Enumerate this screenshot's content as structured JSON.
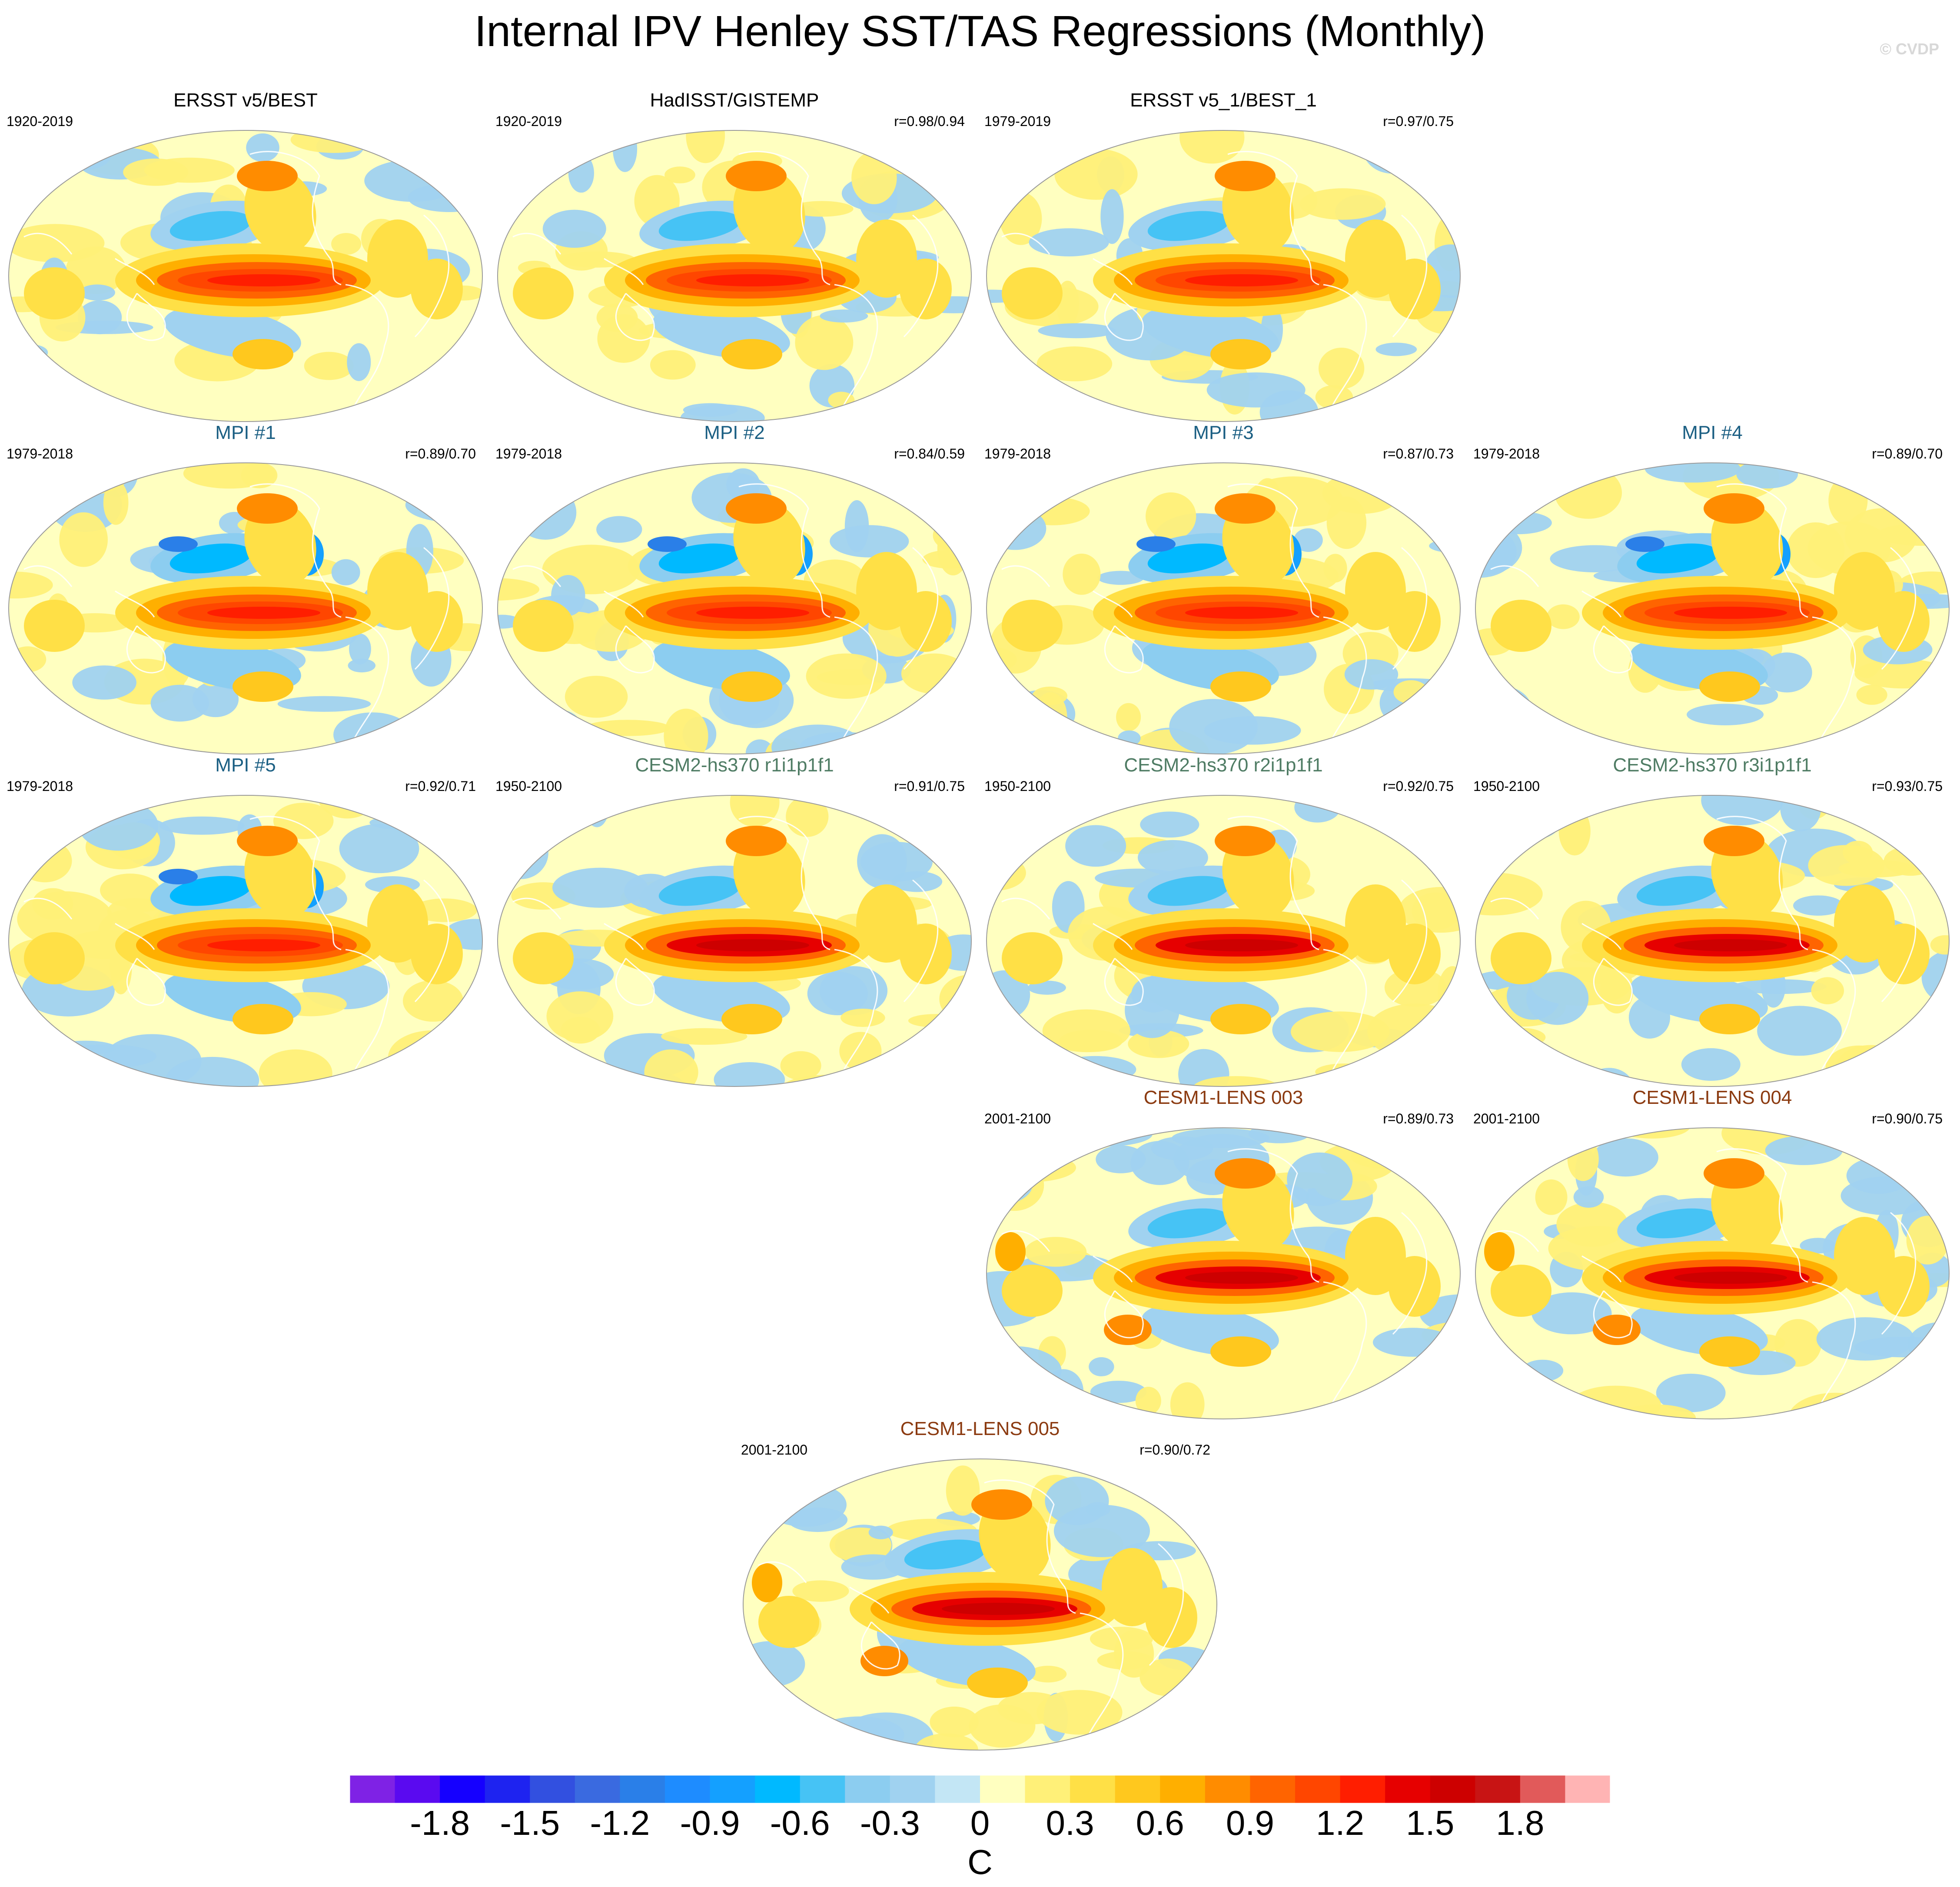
{
  "title": "Internal IPV Henley SST/TAS Regressions (Monthly)",
  "watermark": "© CVDP",
  "chart_data": {
    "type": "map-panel-grid",
    "variable": "SST/TAS regression on internal IPV Henley index",
    "units": "C",
    "colorbar": {
      "colors": [
        "#7f22e5",
        "#5a0af0",
        "#1500ff",
        "#1e23f0",
        "#3250e0",
        "#3a6ae0",
        "#2a7fe8",
        "#1e8cff",
        "#14a0ff",
        "#00b9ff",
        "#46c3f5",
        "#8ccdf0",
        "#a0d2f0",
        "#c3e6f5",
        "#ffffc0",
        "#fff078",
        "#ffe046",
        "#ffc81e",
        "#ffaf00",
        "#ff8c00",
        "#ff6400",
        "#ff4600",
        "#ff1e00",
        "#e60000",
        "#cd0000",
        "#c81414",
        "#e15a5a",
        "#ffb4b4"
      ],
      "tick_labels": [
        "-1.8",
        "-1.5",
        "-1.2",
        "-0.9",
        "-0.6",
        "-0.3",
        "0",
        "0.3",
        "0.6",
        "0.9",
        "1.2",
        "1.5",
        "1.8"
      ],
      "range": [
        -2.1,
        2.1
      ],
      "interval": 0.15,
      "units": "C"
    },
    "panels": [
      {
        "title": "ERSST v5/BEST",
        "period": "1920-2019",
        "corr": "",
        "group": "obs"
      },
      {
        "title": "HadISST/GISTEMP",
        "period": "1920-2019",
        "corr": "r=0.98/0.94",
        "group": "obs"
      },
      {
        "title": "ERSST v5_1/BEST_1",
        "period": "1979-2019",
        "corr": "r=0.97/0.75",
        "group": "obs"
      },
      {
        "title": "MPI #1",
        "period": "1979-2018",
        "corr": "r=0.89/0.70",
        "group": "mpi"
      },
      {
        "title": "MPI #2",
        "period": "1979-2018",
        "corr": "r=0.84/0.59",
        "group": "mpi"
      },
      {
        "title": "MPI #3",
        "period": "1979-2018",
        "corr": "r=0.87/0.73",
        "group": "mpi"
      },
      {
        "title": "MPI #4",
        "period": "1979-2018",
        "corr": "r=0.89/0.70",
        "group": "mpi"
      },
      {
        "title": "MPI #5",
        "period": "1979-2018",
        "corr": "r=0.92/0.71",
        "group": "mpi"
      },
      {
        "title": "CESM2-hs370 r1i1p1f1",
        "period": "1950-2100",
        "corr": "r=0.91/0.75",
        "group": "cesm2"
      },
      {
        "title": "CESM2-hs370 r2i1p1f1",
        "period": "1950-2100",
        "corr": "r=0.92/0.75",
        "group": "cesm2"
      },
      {
        "title": "CESM2-hs370 r3i1p1f1",
        "period": "1950-2100",
        "corr": "r=0.93/0.75",
        "group": "cesm2"
      },
      {
        "title": "CESM1-LENS 003",
        "period": "2001-2100",
        "corr": "r=0.89/0.73",
        "group": "cesm1"
      },
      {
        "title": "CESM1-LENS 004",
        "period": "2001-2100",
        "corr": "r=0.90/0.75",
        "group": "cesm1"
      },
      {
        "title": "CESM1-LENS 005",
        "period": "2001-2100",
        "corr": "r=0.90/0.72",
        "group": "cesm1"
      }
    ]
  },
  "group_colors": {
    "obs": "#000000",
    "mpi": "#1b5f83",
    "cesm2": "#4f7c64",
    "cesm1": "#8b3a10"
  }
}
